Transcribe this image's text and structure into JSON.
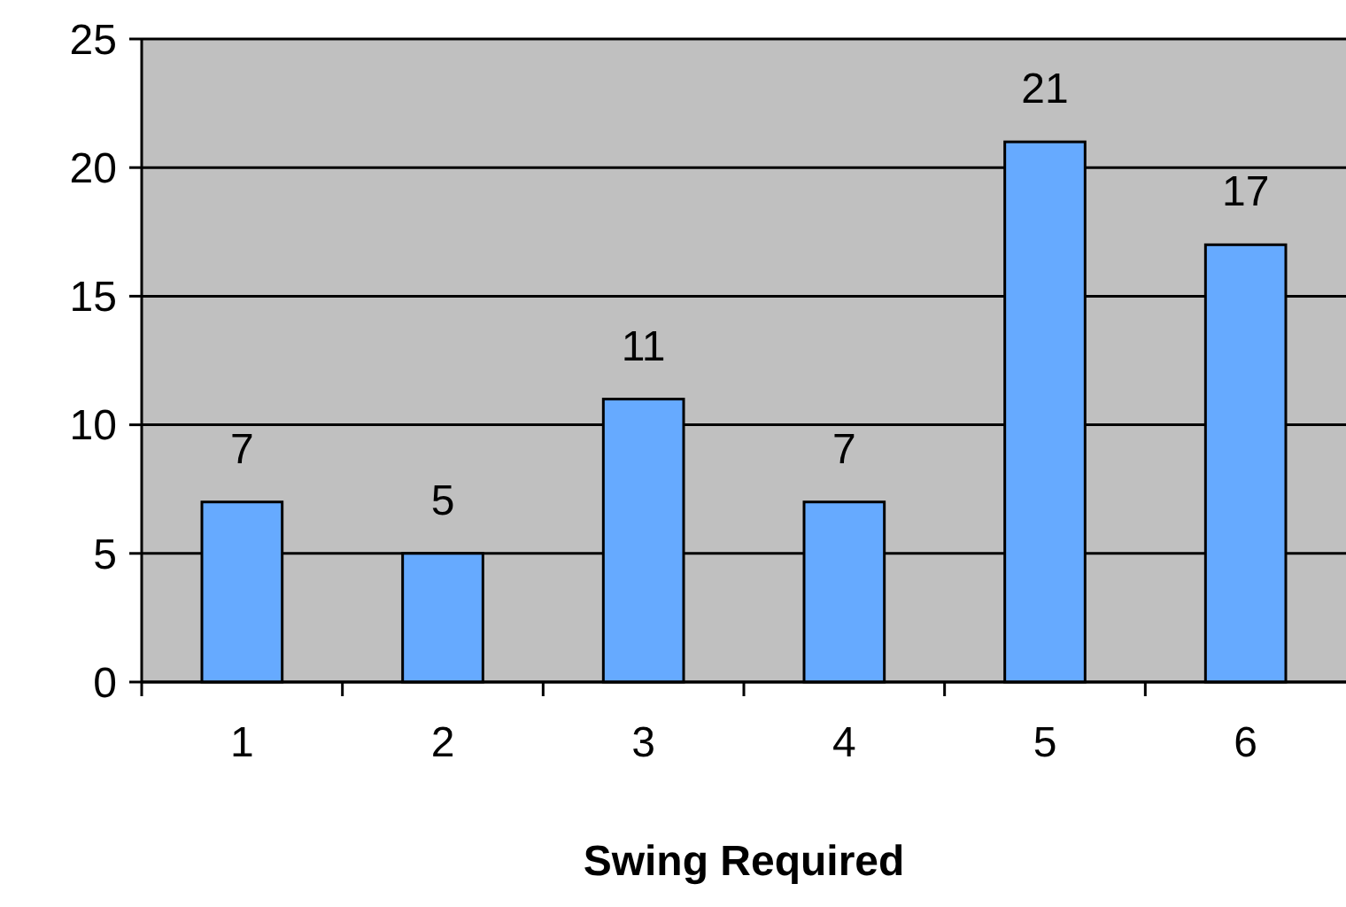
{
  "chart_data": {
    "type": "bar",
    "xlabel": "Swing Required",
    "categories": [
      "1",
      "2",
      "3",
      "4",
      "5",
      "6"
    ],
    "values": [
      7,
      5,
      11,
      7,
      21,
      17
    ],
    "color": "#66aaff",
    "ylim": [
      0,
      25
    ],
    "yticks": [
      0,
      5,
      10,
      15,
      20,
      25
    ],
    "grid": "y",
    "data_labels": true
  }
}
